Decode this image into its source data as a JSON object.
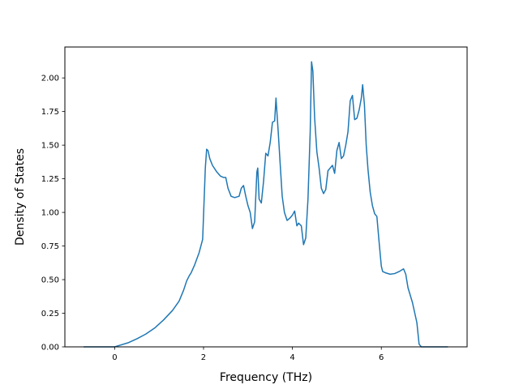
{
  "chart_data": {
    "type": "line",
    "title": "",
    "xlabel": "Frequency (THz)",
    "ylabel": "Density of States",
    "xlim": [
      -1.12,
      7.93
    ],
    "ylim": [
      0,
      2.23
    ],
    "grid": false,
    "legend": "none",
    "x_ticks": [
      0,
      2,
      4,
      6
    ],
    "x_tick_labels": [
      "0",
      "2",
      "4",
      "6"
    ],
    "y_ticks": [
      0,
      0.25,
      0.5,
      0.75,
      1.0,
      1.25,
      1.5,
      1.75,
      2.0
    ],
    "y_tick_labels": [
      "0.00",
      "0.25",
      "0.50",
      "0.75",
      "1.00",
      "1.25",
      "1.50",
      "1.75",
      "2.00"
    ],
    "series": [
      {
        "color": "#1f77b4",
        "x": [
          -0.7,
          -0.3,
          0.0,
          0.1,
          0.3,
          0.5,
          0.7,
          0.9,
          1.1,
          1.3,
          1.45,
          1.55,
          1.62,
          1.68,
          1.72,
          1.8,
          1.9,
          1.98,
          2.04,
          2.07,
          2.1,
          2.14,
          2.2,
          2.3,
          2.38,
          2.45,
          2.5,
          2.55,
          2.62,
          2.7,
          2.8,
          2.85,
          2.9,
          2.95,
          3.0,
          3.05,
          3.1,
          3.15,
          3.2,
          3.22,
          3.25,
          3.3,
          3.35,
          3.4,
          3.45,
          3.5,
          3.55,
          3.6,
          3.63,
          3.68,
          3.73,
          3.77,
          3.82,
          3.88,
          3.95,
          4.0,
          4.05,
          4.1,
          4.14,
          4.2,
          4.25,
          4.3,
          4.35,
          4.4,
          4.43,
          4.46,
          4.5,
          4.55,
          4.6,
          4.65,
          4.7,
          4.75,
          4.8,
          4.85,
          4.9,
          4.95,
          5.0,
          5.05,
          5.1,
          5.15,
          5.2,
          5.25,
          5.3,
          5.35,
          5.4,
          5.45,
          5.5,
          5.55,
          5.58,
          5.62,
          5.66,
          5.7,
          5.75,
          5.8,
          5.85,
          5.9,
          5.95,
          6.0,
          6.03,
          6.1,
          6.2,
          6.3,
          6.4,
          6.5,
          6.55,
          6.6,
          6.7,
          6.8,
          6.85,
          6.9,
          7.5
        ],
        "y": [
          0,
          0,
          0,
          0.01,
          0.03,
          0.06,
          0.095,
          0.14,
          0.2,
          0.27,
          0.34,
          0.42,
          0.49,
          0.53,
          0.55,
          0.61,
          0.7,
          0.8,
          1.33,
          1.47,
          1.46,
          1.4,
          1.35,
          1.3,
          1.27,
          1.26,
          1.26,
          1.18,
          1.12,
          1.11,
          1.12,
          1.18,
          1.2,
          1.12,
          1.05,
          1.0,
          0.88,
          0.93,
          1.3,
          1.33,
          1.1,
          1.07,
          1.23,
          1.44,
          1.42,
          1.52,
          1.67,
          1.68,
          1.85,
          1.6,
          1.33,
          1.12,
          1.0,
          0.94,
          0.96,
          0.98,
          1.01,
          0.9,
          0.92,
          0.9,
          0.76,
          0.81,
          1.1,
          1.6,
          2.12,
          2.05,
          1.7,
          1.45,
          1.33,
          1.18,
          1.14,
          1.17,
          1.31,
          1.33,
          1.35,
          1.29,
          1.46,
          1.52,
          1.4,
          1.42,
          1.5,
          1.6,
          1.83,
          1.87,
          1.69,
          1.7,
          1.76,
          1.85,
          1.95,
          1.8,
          1.5,
          1.32,
          1.15,
          1.05,
          0.99,
          0.97,
          0.78,
          0.6,
          0.56,
          0.55,
          0.54,
          0.545,
          0.56,
          0.58,
          0.54,
          0.44,
          0.33,
          0.18,
          0.02,
          0,
          0
        ]
      }
    ]
  }
}
